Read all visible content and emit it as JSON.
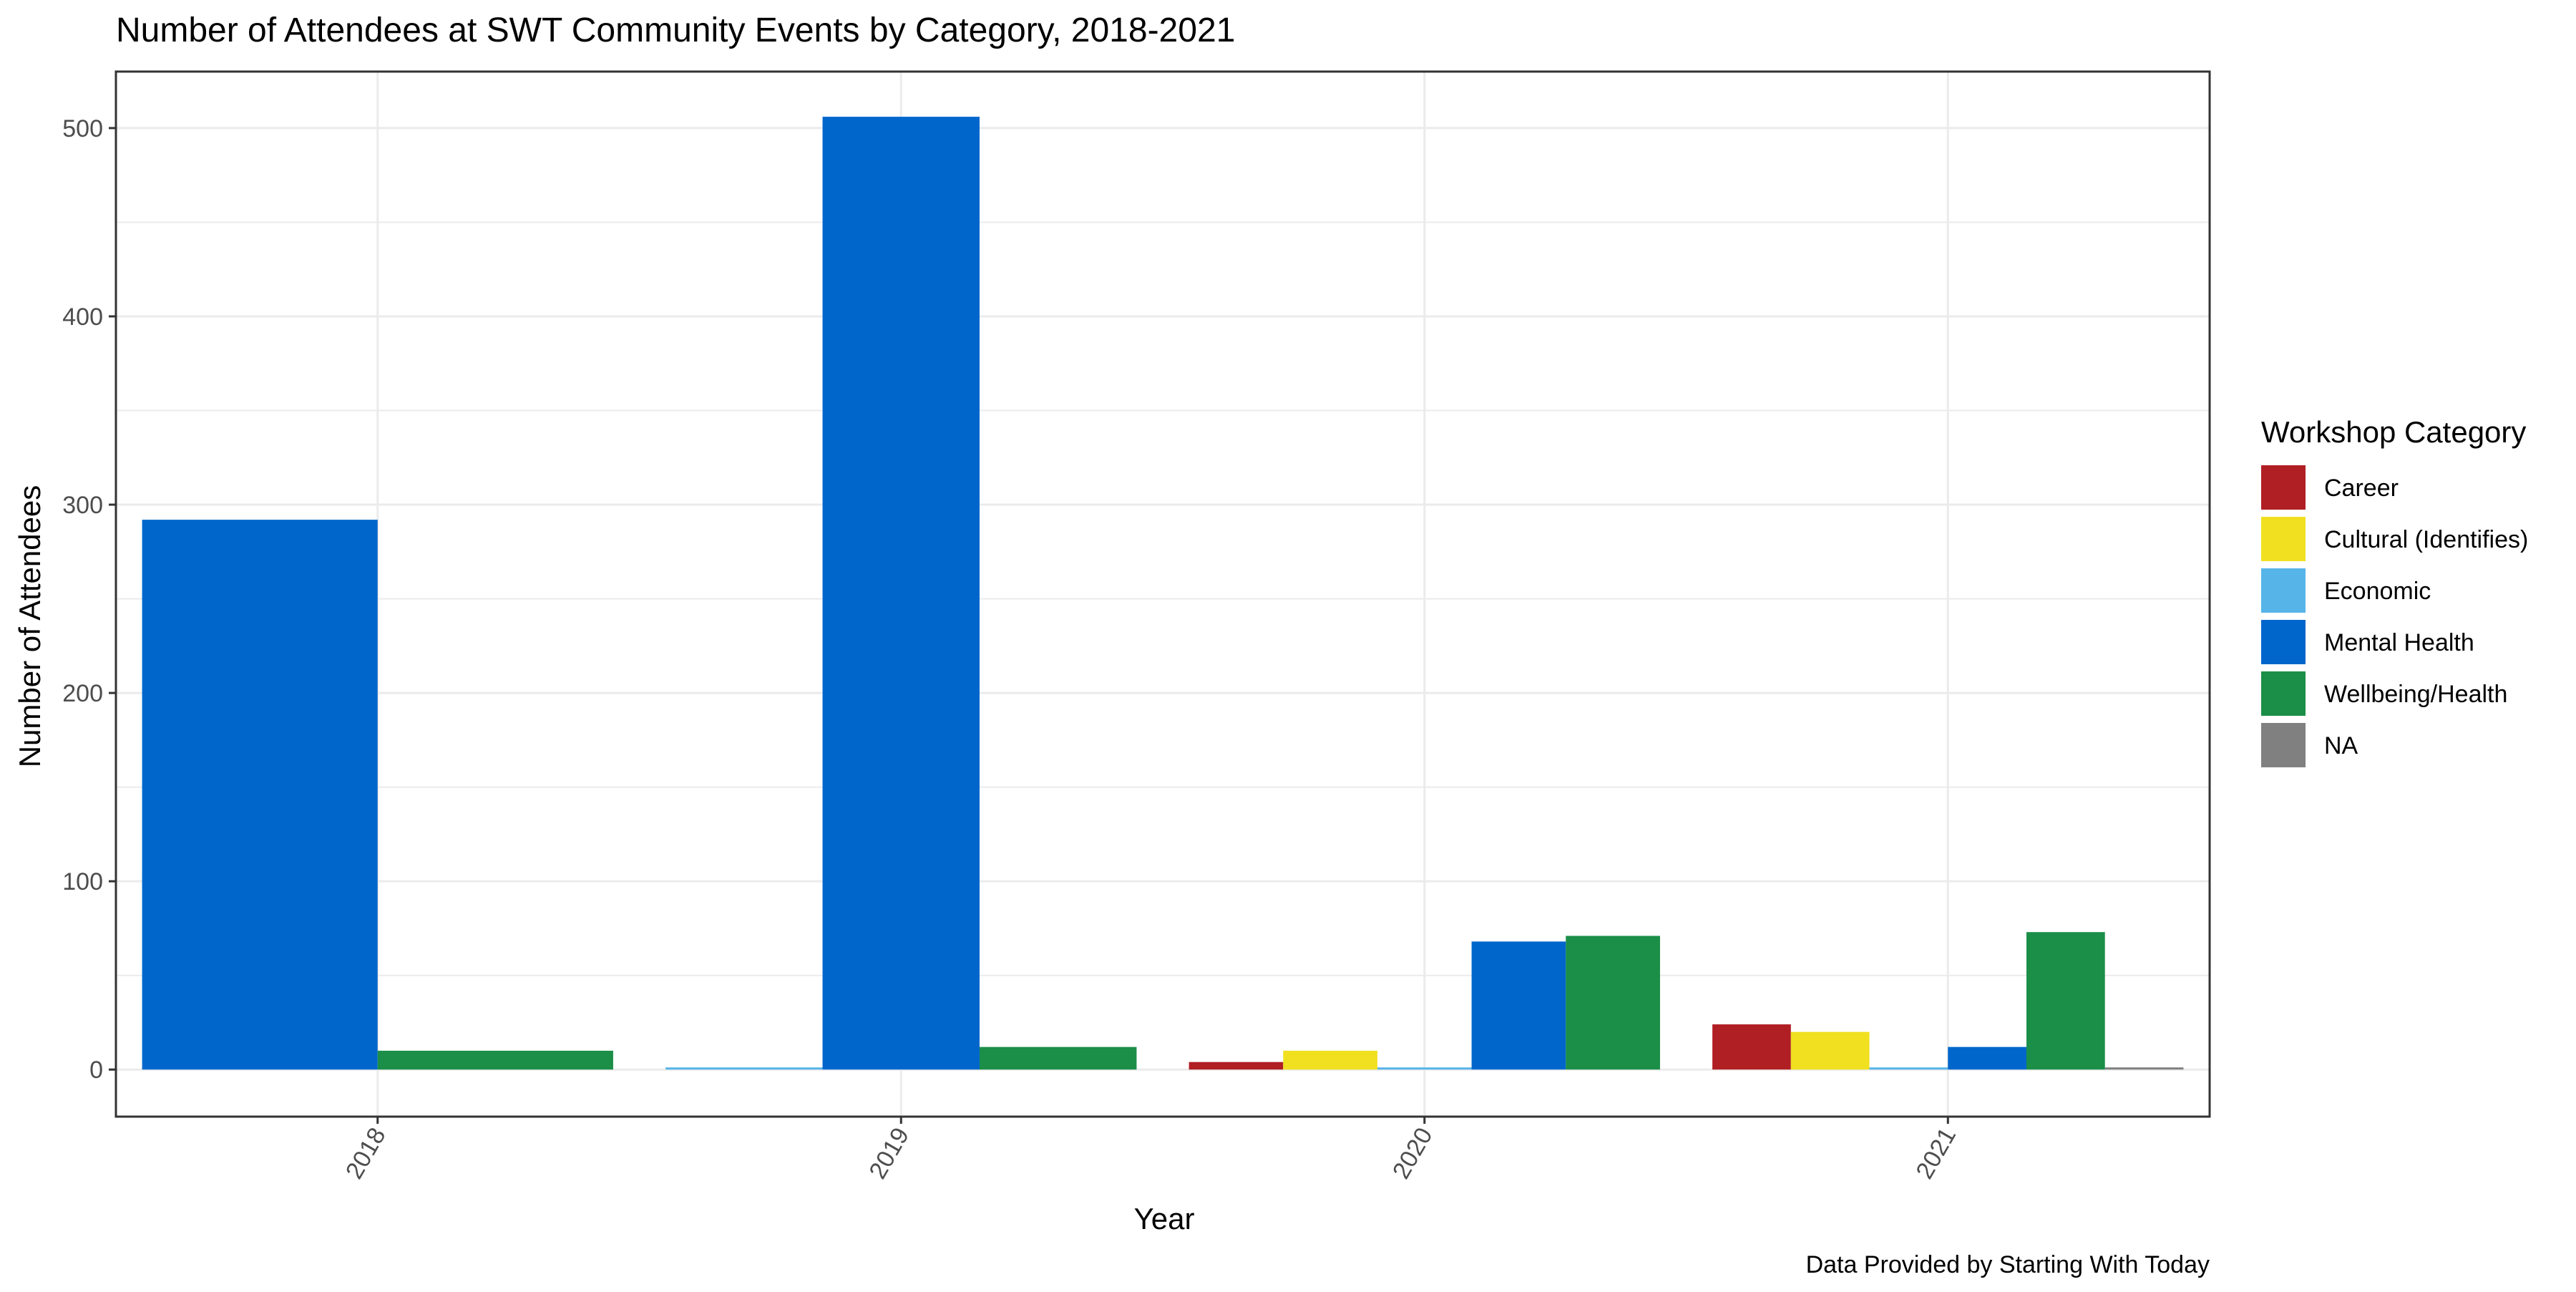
{
  "chart_data": {
    "type": "bar",
    "title": "Number of Attendees at SWT Community Events by Category, 2018-2021",
    "xlabel": "Year",
    "ylabel": "Number of Attendees",
    "caption": "Data Provided by Starting With Today",
    "categories": [
      "2018",
      "2019",
      "2020",
      "2021"
    ],
    "ylim": [
      -25,
      530
    ],
    "yticks": [
      0,
      100,
      200,
      300,
      400,
      500
    ],
    "grid": true,
    "legend": {
      "title": "Workshop Category",
      "position": "right"
    },
    "series": [
      {
        "name": "Career",
        "color": "#b01f24",
        "points": [
          {
            "x": "2020",
            "value": 4
          },
          {
            "x": "2021",
            "value": 24
          }
        ]
      },
      {
        "name": "Cultural (Identifies)",
        "color": "#f0e020",
        "points": [
          {
            "x": "2020",
            "value": 10
          },
          {
            "x": "2021",
            "value": 20
          }
        ]
      },
      {
        "name": "Economic",
        "color": "#56b4e9",
        "points": [
          {
            "x": "2019",
            "value": 1
          },
          {
            "x": "2020",
            "value": 1
          },
          {
            "x": "2021",
            "value": 1
          }
        ]
      },
      {
        "name": "Mental Health",
        "color": "#0066cc",
        "points": [
          {
            "x": "2018",
            "value": 292
          },
          {
            "x": "2019",
            "value": 506
          },
          {
            "x": "2020",
            "value": 68
          },
          {
            "x": "2021",
            "value": 12
          }
        ]
      },
      {
        "name": "Wellbeing/Health",
        "color": "#1b8e48",
        "points": [
          {
            "x": "2018",
            "value": 10
          },
          {
            "x": "2019",
            "value": 12
          },
          {
            "x": "2020",
            "value": 71
          },
          {
            "x": "2021",
            "value": 73
          }
        ]
      },
      {
        "name": "NA",
        "color": "#808080",
        "points": [
          {
            "x": "2021",
            "value": 1
          }
        ]
      }
    ]
  }
}
